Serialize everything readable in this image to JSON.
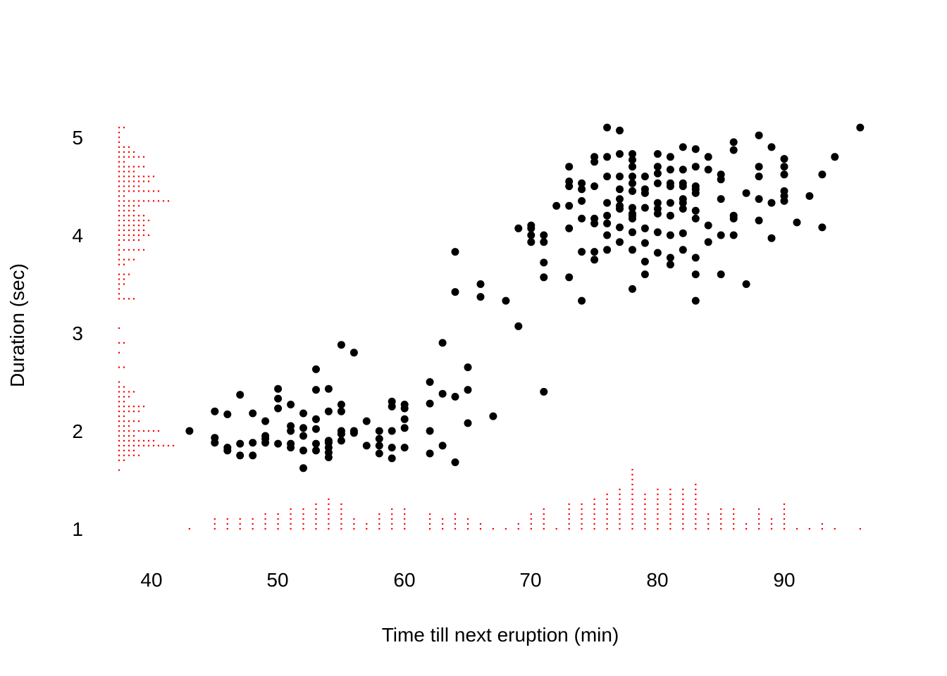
{
  "chart_data": {
    "type": "scatter",
    "title": "",
    "xlabel": "Time till next eruption (min)",
    "ylabel": "Duration (sec)",
    "xlim": [
      37.5,
      96.5
    ],
    "ylim": [
      0.8,
      5.3
    ],
    "xticks": [
      40,
      50,
      60,
      70,
      80,
      90
    ],
    "yticks": [
      1,
      2,
      3,
      4,
      5
    ],
    "grid": false,
    "legend": "none",
    "point_color": "#000000",
    "rug_color": "#ff0000",
    "rug_style": "stacked dot plot (marginal distribution) along x at bottom and along y at left",
    "points": [
      [
        43,
        2.0
      ],
      [
        45,
        2.2
      ],
      [
        45,
        1.93
      ],
      [
        45,
        1.88
      ],
      [
        46,
        2.17
      ],
      [
        46,
        1.83
      ],
      [
        46,
        1.8
      ],
      [
        47,
        2.37
      ],
      [
        47,
        1.87
      ],
      [
        47,
        1.75
      ],
      [
        48,
        2.18
      ],
      [
        48,
        1.88
      ],
      [
        48,
        1.75
      ],
      [
        49,
        2.1
      ],
      [
        49,
        1.95
      ],
      [
        49,
        1.92
      ],
      [
        49,
        1.88
      ],
      [
        50,
        2.43
      ],
      [
        50,
        2.33
      ],
      [
        50,
        2.23
      ],
      [
        50,
        1.87
      ],
      [
        51,
        2.27
      ],
      [
        51,
        2.05
      ],
      [
        51,
        2.0
      ],
      [
        51,
        1.87
      ],
      [
        51,
        1.83
      ],
      [
        52,
        2.18
      ],
      [
        52,
        2.03
      ],
      [
        52,
        1.95
      ],
      [
        52,
        1.8
      ],
      [
        52,
        1.62
      ],
      [
        53,
        2.63
      ],
      [
        53,
        2.42
      ],
      [
        53,
        2.12
      ],
      [
        53,
        2.02
      ],
      [
        53,
        1.87
      ],
      [
        53,
        1.8
      ],
      [
        54,
        2.43
      ],
      [
        54,
        2.2
      ],
      [
        54,
        1.9
      ],
      [
        54,
        1.88
      ],
      [
        54,
        1.83
      ],
      [
        54,
        1.78
      ],
      [
        54,
        1.73
      ],
      [
        55,
        2.88
      ],
      [
        55,
        2.27
      ],
      [
        55,
        2.2
      ],
      [
        55,
        2.0
      ],
      [
        55,
        1.97
      ],
      [
        55,
        1.9
      ],
      [
        56,
        2.8
      ],
      [
        56,
        2.0
      ],
      [
        56,
        1.98
      ],
      [
        57,
        2.1
      ],
      [
        57,
        1.85
      ],
      [
        58,
        2.0
      ],
      [
        58,
        1.92
      ],
      [
        58,
        1.85
      ],
      [
        58,
        1.77
      ],
      [
        59,
        2.3
      ],
      [
        59,
        2.25
      ],
      [
        59,
        2.0
      ],
      [
        59,
        1.83
      ],
      [
        59,
        1.72
      ],
      [
        60,
        2.27
      ],
      [
        60,
        2.23
      ],
      [
        60,
        2.12
      ],
      [
        60,
        2.03
      ],
      [
        60,
        1.83
      ],
      [
        62,
        2.5
      ],
      [
        62,
        2.28
      ],
      [
        62,
        2.0
      ],
      [
        62,
        1.77
      ],
      [
        63,
        2.9
      ],
      [
        63,
        2.38
      ],
      [
        63,
        1.85
      ],
      [
        64,
        3.83
      ],
      [
        64,
        3.42
      ],
      [
        64,
        2.35
      ],
      [
        64,
        1.68
      ],
      [
        65,
        2.65
      ],
      [
        65,
        2.42
      ],
      [
        65,
        2.08
      ],
      [
        66,
        3.5
      ],
      [
        66,
        3.37
      ],
      [
        67,
        2.15
      ],
      [
        68,
        3.33
      ],
      [
        69,
        4.07
      ],
      [
        69,
        3.07
      ],
      [
        70,
        4.1
      ],
      [
        70,
        4.07
      ],
      [
        70,
        4.0
      ],
      [
        70,
        3.93
      ],
      [
        71,
        4.0
      ],
      [
        71,
        3.93
      ],
      [
        71,
        3.72
      ],
      [
        71,
        3.57
      ],
      [
        71,
        2.4
      ],
      [
        72,
        4.3
      ],
      [
        73,
        4.7
      ],
      [
        73,
        4.55
      ],
      [
        73,
        4.5
      ],
      [
        73,
        4.3
      ],
      [
        73,
        4.07
      ],
      [
        73,
        3.57
      ],
      [
        74,
        4.53
      ],
      [
        74,
        4.47
      ],
      [
        74,
        4.35
      ],
      [
        74,
        4.17
      ],
      [
        74,
        3.83
      ],
      [
        74,
        3.33
      ],
      [
        75,
        4.8
      ],
      [
        75,
        4.75
      ],
      [
        75,
        4.5
      ],
      [
        75,
        4.17
      ],
      [
        75,
        4.12
      ],
      [
        75,
        3.83
      ],
      [
        75,
        3.75
      ],
      [
        76,
        5.1
      ],
      [
        76,
        4.8
      ],
      [
        76,
        4.6
      ],
      [
        76,
        4.33
      ],
      [
        76,
        4.2
      ],
      [
        76,
        4.12
      ],
      [
        76,
        4.0
      ],
      [
        76,
        3.85
      ],
      [
        77,
        5.07
      ],
      [
        77,
        4.83
      ],
      [
        77,
        4.6
      ],
      [
        77,
        4.47
      ],
      [
        77,
        4.37
      ],
      [
        77,
        4.3
      ],
      [
        77,
        4.27
      ],
      [
        77,
        4.08
      ],
      [
        77,
        3.93
      ],
      [
        78,
        4.83
      ],
      [
        78,
        4.77
      ],
      [
        78,
        4.7
      ],
      [
        78,
        4.6
      ],
      [
        78,
        4.53
      ],
      [
        78,
        4.45
      ],
      [
        78,
        4.28
      ],
      [
        78,
        4.22
      ],
      [
        78,
        4.2
      ],
      [
        78,
        4.17
      ],
      [
        78,
        4.03
      ],
      [
        78,
        3.85
      ],
      [
        78,
        3.45
      ],
      [
        79,
        4.6
      ],
      [
        79,
        4.47
      ],
      [
        79,
        4.43
      ],
      [
        79,
        4.28
      ],
      [
        79,
        4.07
      ],
      [
        79,
        3.92
      ],
      [
        79,
        3.73
      ],
      [
        79,
        3.6
      ],
      [
        80,
        4.83
      ],
      [
        80,
        4.7
      ],
      [
        80,
        4.63
      ],
      [
        80,
        4.53
      ],
      [
        80,
        4.33
      ],
      [
        80,
        4.27
      ],
      [
        80,
        4.22
      ],
      [
        80,
        4.03
      ],
      [
        80,
        3.82
      ],
      [
        81,
        4.8
      ],
      [
        81,
        4.67
      ],
      [
        81,
        4.53
      ],
      [
        81,
        4.5
      ],
      [
        81,
        4.33
      ],
      [
        81,
        4.2
      ],
      [
        81,
        4.0
      ],
      [
        81,
        3.77
      ],
      [
        81,
        3.7
      ],
      [
        82,
        4.9
      ],
      [
        82,
        4.67
      ],
      [
        82,
        4.53
      ],
      [
        82,
        4.5
      ],
      [
        82,
        4.37
      ],
      [
        82,
        4.33
      ],
      [
        82,
        4.27
      ],
      [
        82,
        4.02
      ],
      [
        82,
        3.85
      ],
      [
        83,
        4.88
      ],
      [
        83,
        4.7
      ],
      [
        83,
        4.5
      ],
      [
        83,
        4.47
      ],
      [
        83,
        4.43
      ],
      [
        83,
        4.25
      ],
      [
        83,
        4.17
      ],
      [
        83,
        3.77
      ],
      [
        83,
        3.6
      ],
      [
        83,
        3.33
      ],
      [
        84,
        4.8
      ],
      [
        84,
        4.67
      ],
      [
        84,
        4.1
      ],
      [
        84,
        3.93
      ],
      [
        85,
        4.62
      ],
      [
        85,
        4.57
      ],
      [
        85,
        4.37
      ],
      [
        85,
        4.0
      ],
      [
        85,
        3.6
      ],
      [
        86,
        4.95
      ],
      [
        86,
        4.87
      ],
      [
        86,
        4.2
      ],
      [
        86,
        4.17
      ],
      [
        86,
        4.0
      ],
      [
        87,
        4.43
      ],
      [
        87,
        3.5
      ],
      [
        88,
        5.02
      ],
      [
        88,
        4.7
      ],
      [
        88,
        4.6
      ],
      [
        88,
        4.37
      ],
      [
        88,
        4.15
      ],
      [
        89,
        4.9
      ],
      [
        89,
        4.33
      ],
      [
        89,
        3.97
      ],
      [
        90,
        4.78
      ],
      [
        90,
        4.7
      ],
      [
        90,
        4.62
      ],
      [
        90,
        4.45
      ],
      [
        90,
        4.4
      ],
      [
        90,
        4.35
      ],
      [
        91,
        4.13
      ],
      [
        92,
        4.4
      ],
      [
        93,
        4.62
      ],
      [
        93,
        4.08
      ],
      [
        94,
        4.8
      ],
      [
        96,
        5.1
      ]
    ]
  }
}
